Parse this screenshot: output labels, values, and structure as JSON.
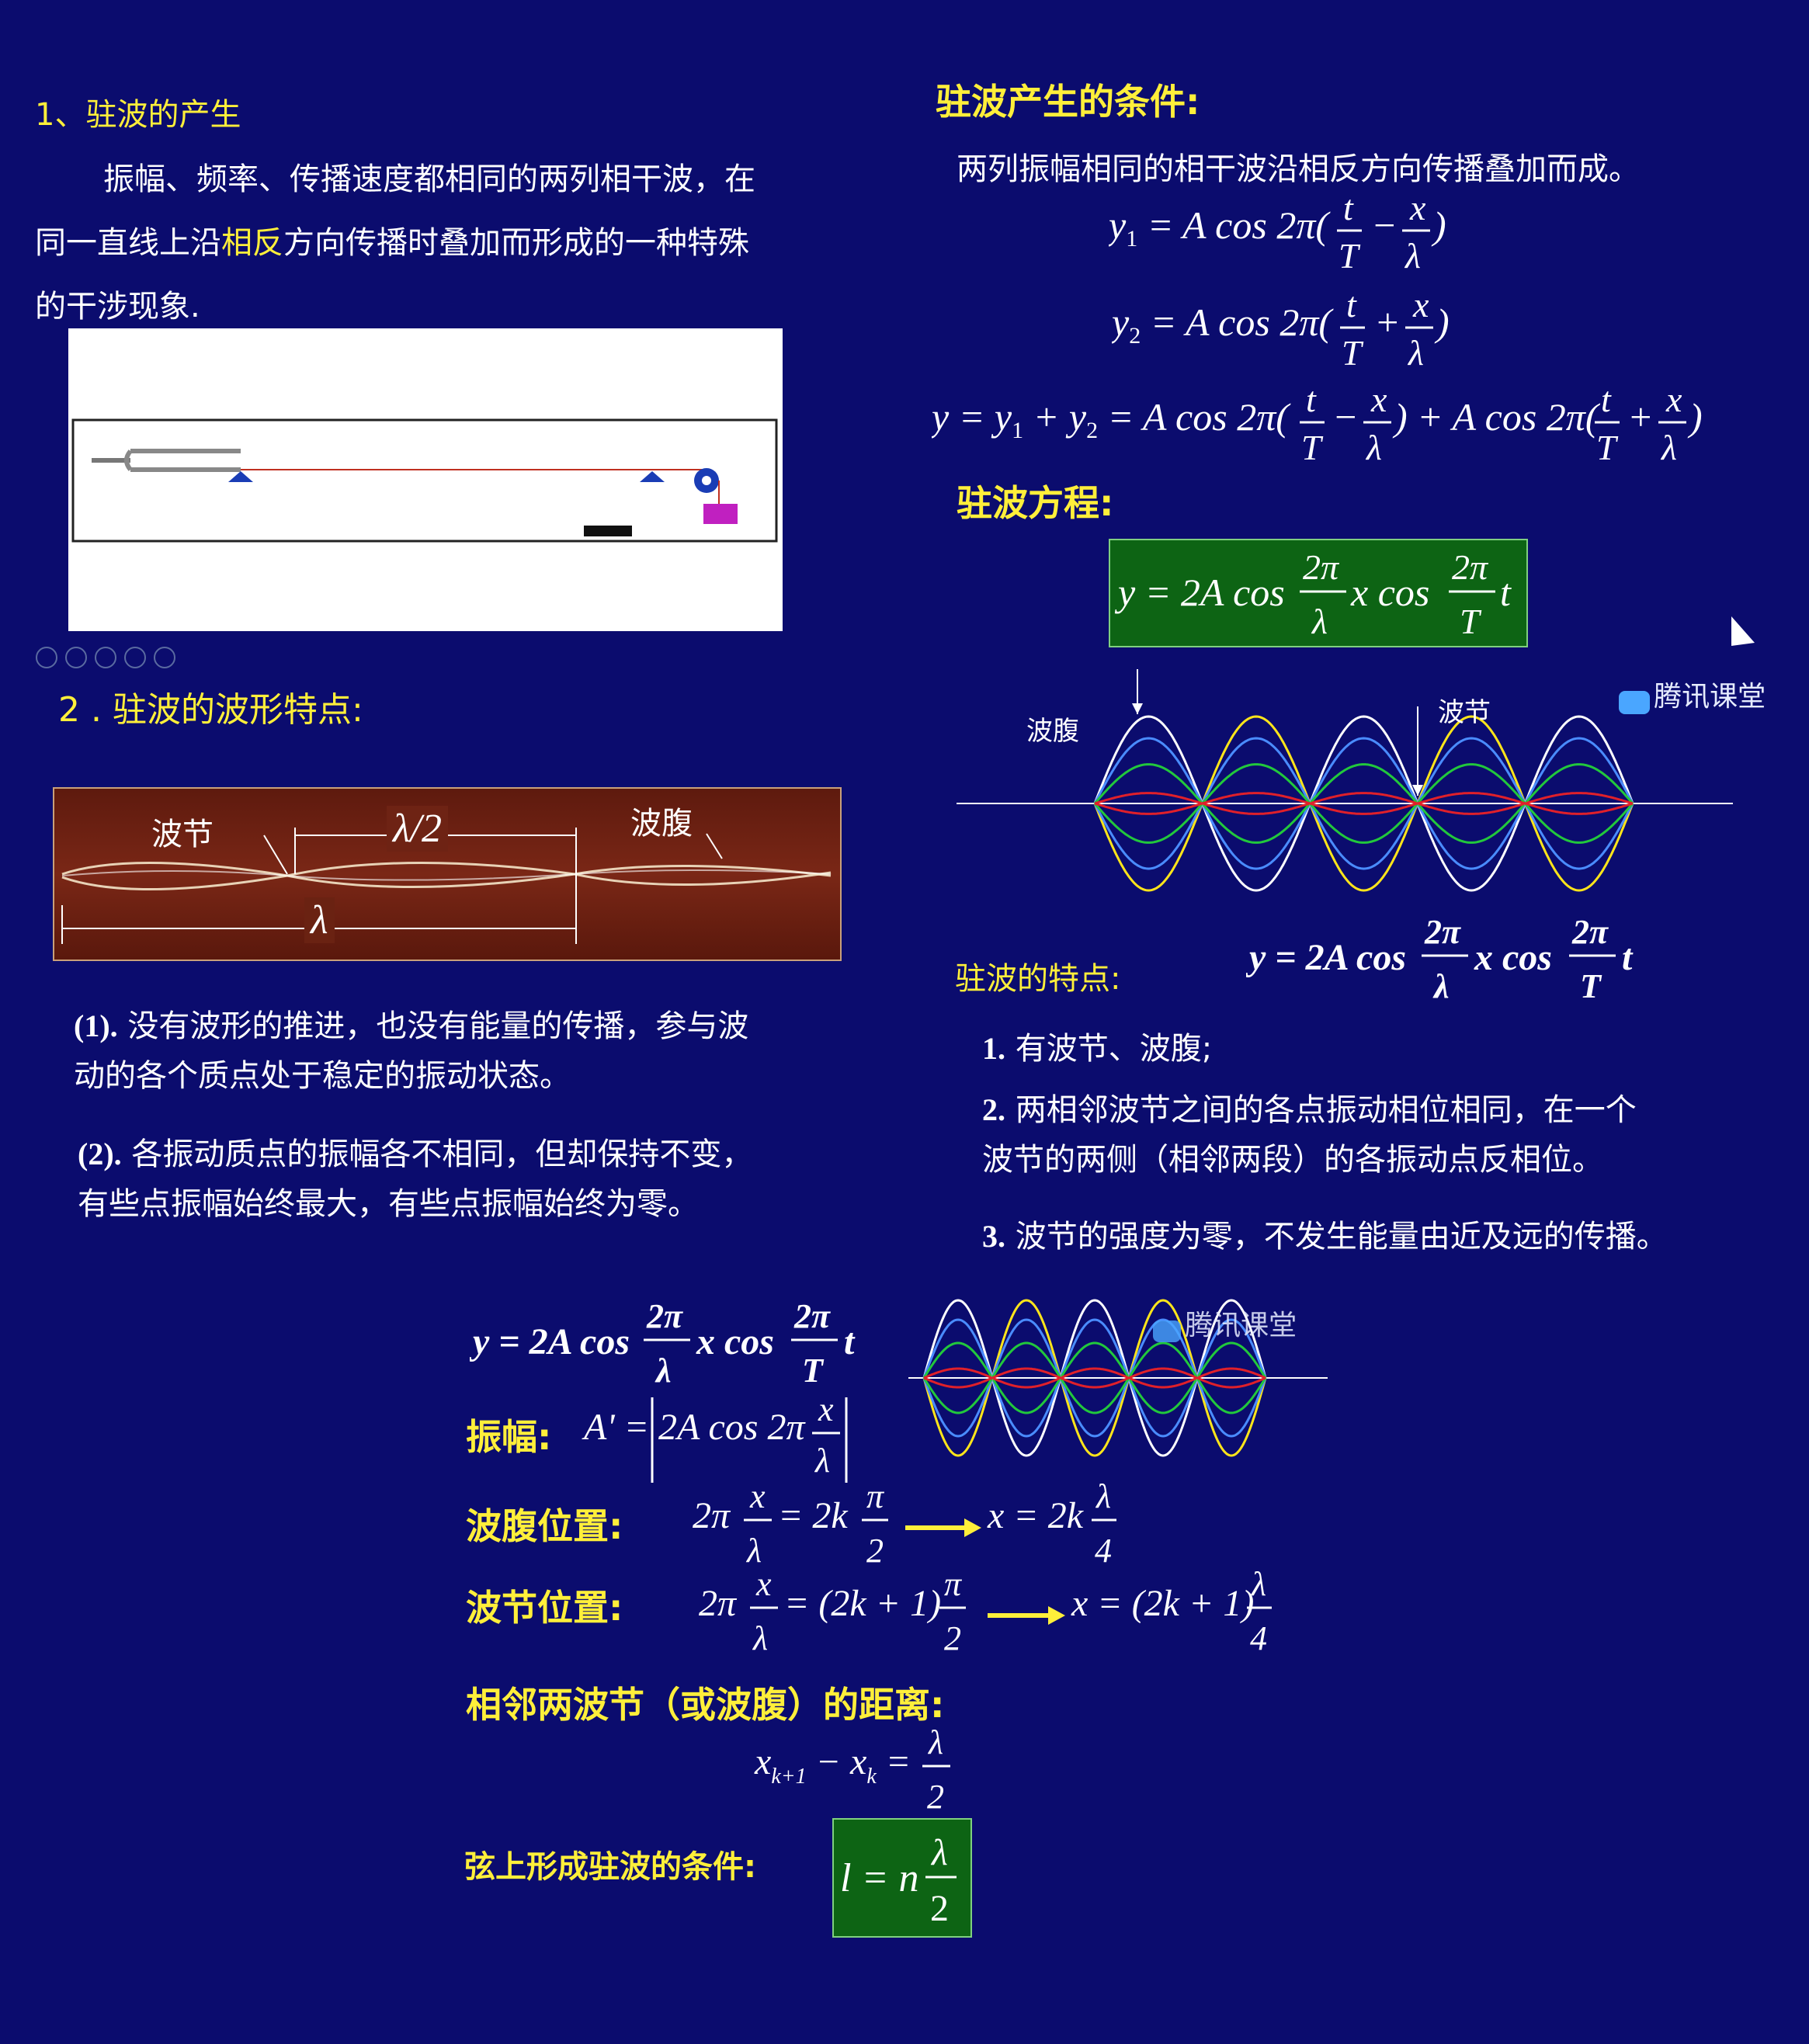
{
  "left_top": {
    "heading": "1、驻波的产生",
    "para_a": "振幅、频率、传播速度都相同的两列相干波，在",
    "para_b": "同一直线上沿",
    "para_hl": "相反",
    "para_c": "方向传播时叠加而形成的一种特殊",
    "para_d": "的干涉现象."
  },
  "right_top": {
    "heading": "驻波产生的条件:",
    "desc": "两列振幅相同的相干波沿相反方向传播叠加而成。",
    "eq_label": "驻波方程:"
  },
  "section2": {
    "heading": "2 . 驻波的波形特点:"
  },
  "photo": {
    "node": "波节",
    "half": "λ/2",
    "antinode": "波腹",
    "lambda": "λ"
  },
  "wave1": {
    "antinode": "波腹",
    "node": "波节",
    "watermark": "腾讯课堂"
  },
  "left_points": {
    "p1_num": "(1).",
    "p1_a": "没有波形的推进，也没有能量的传播，参与波",
    "p1_b": "动的各个质点处于稳定的振动状态。",
    "p2_num": "(2).",
    "p2_a": "各振动质点的振幅各不相同，但却保持不变，",
    "p2_b": "有些点振幅始终最大，有些点振幅始终为零。"
  },
  "features": {
    "label": "驻波的特点:",
    "f1_num": "1.",
    "f1": "有波节、波腹;",
    "f2_num": "2.",
    "f2_a": "两相邻波节之间的各点振动相位相同，在一个",
    "f2_b": "波节的两侧（相邻两段）的各振动点反相位。",
    "f3_num": "3.",
    "f3": "波节的强度为零，不发生能量由近及远的传播。"
  },
  "bottom": {
    "amp_label": "振幅:",
    "antinode_label": "波腹位置:",
    "node_label": "波节位置:",
    "dist_label": "相邻两波节（或波腹）的距离:",
    "cond_label": "弦上形成驻波的条件:",
    "watermark": "腾讯课堂"
  },
  "colors": {
    "background": "#0b0c6e",
    "heading": "#ffef3a",
    "box": "#0d6414"
  }
}
